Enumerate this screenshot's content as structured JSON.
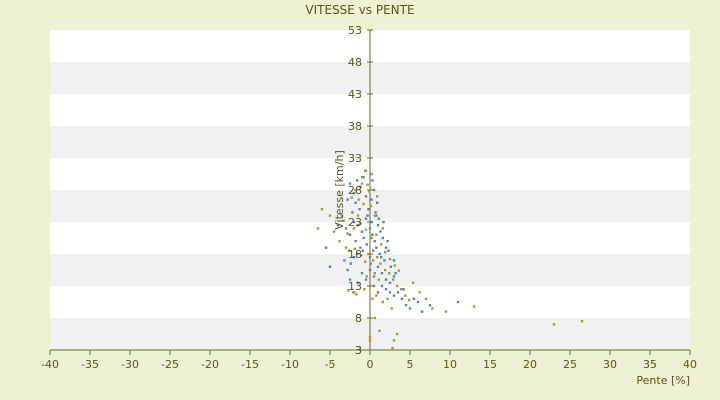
{
  "chart_data": {
    "type": "scatter",
    "title": "VITESSE vs PENTE",
    "xlabel": "Pente [%]",
    "ylabel": "Vitesse [km/h]",
    "xlim": [
      -40,
      40
    ],
    "ylim": [
      3,
      53
    ],
    "x_ticks": [
      "-40",
      "-35",
      "-30",
      "-25",
      "-20",
      "-15",
      "-10",
      "-5",
      "0",
      "5",
      "10",
      "15",
      "20",
      "25",
      "30",
      "35",
      "40"
    ],
    "y_ticks": [
      "53",
      "48",
      "43",
      "38",
      "33",
      "28",
      "23",
      "18",
      "13",
      "8",
      "3"
    ],
    "y_tick_bottom": "3",
    "grid": "horizontal alternating bands",
    "colors": {
      "background": "#eff2d2",
      "band_light": "#ffffff",
      "band_dark": "#f1f1f1",
      "axis": "#6b6b2a",
      "text": "#55551c",
      "point_a": "#4a86c8",
      "point_b": "#a89a2a"
    },
    "series": [
      {
        "color": "#4a86c8",
        "points": [
          [
            -2.5,
            29
          ],
          [
            -2.0,
            27.5
          ],
          [
            -1.8,
            26
          ],
          [
            -1.2,
            28.5
          ],
          [
            -0.8,
            30
          ],
          [
            -0.5,
            27
          ],
          [
            -0.2,
            25
          ],
          [
            0.2,
            26.5
          ],
          [
            0.5,
            28
          ],
          [
            0.8,
            24
          ],
          [
            -3.0,
            22
          ],
          [
            -2.5,
            21
          ],
          [
            -2.0,
            23
          ],
          [
            -1.5,
            22.5
          ],
          [
            -1.0,
            21.5
          ],
          [
            -0.5,
            23.5
          ],
          [
            0,
            22
          ],
          [
            0.3,
            21
          ],
          [
            0.6,
            20
          ],
          [
            1.0,
            22.5
          ],
          [
            1.3,
            21.5
          ],
          [
            1.6,
            20.5
          ],
          [
            2.0,
            19
          ],
          [
            2.3,
            18.5
          ],
          [
            1.8,
            17
          ],
          [
            1.2,
            18
          ],
          [
            0.8,
            19
          ],
          [
            0.4,
            18.5
          ],
          [
            0,
            17.5
          ],
          [
            -0.4,
            19.5
          ],
          [
            -0.8,
            20.5
          ],
          [
            -1.2,
            19
          ],
          [
            -1.6,
            18
          ],
          [
            -2.0,
            17.5
          ],
          [
            -2.4,
            16.5
          ],
          [
            -2.8,
            15.5
          ],
          [
            -3.2,
            17
          ],
          [
            -5.0,
            16
          ],
          [
            -5.5,
            19
          ],
          [
            -1.0,
            15
          ],
          [
            -0.5,
            14
          ],
          [
            0,
            15.5
          ],
          [
            0.5,
            14.5
          ],
          [
            1.0,
            16
          ],
          [
            1.5,
            15
          ],
          [
            2.0,
            14
          ],
          [
            2.5,
            13.5
          ],
          [
            3.0,
            14.5
          ],
          [
            3.5,
            12
          ],
          [
            4.0,
            11
          ],
          [
            4.5,
            10
          ],
          [
            5.0,
            9.5
          ],
          [
            5.5,
            11
          ],
          [
            6.0,
            10.5
          ],
          [
            6.5,
            9
          ],
          [
            3.0,
            11.5
          ],
          [
            2.5,
            12
          ],
          [
            2.0,
            12.5
          ],
          [
            1.5,
            13
          ],
          [
            1.0,
            12
          ],
          [
            0.5,
            13
          ],
          [
            -1.5,
            13.5
          ],
          [
            -2.0,
            12
          ],
          [
            -2.5,
            14
          ],
          [
            0.2,
            23
          ],
          [
            0.7,
            24.5
          ],
          [
            1.1,
            23.5
          ],
          [
            -0.3,
            24
          ],
          [
            -1.3,
            25
          ],
          [
            -2.2,
            24.5
          ],
          [
            -1.8,
            20
          ],
          [
            -0.9,
            18.5
          ],
          [
            0.1,
            16.5
          ],
          [
            1.4,
            17.5
          ],
          [
            2.6,
            16
          ],
          [
            3.2,
            15
          ],
          [
            4.2,
            12.5
          ],
          [
            7.5,
            10
          ],
          [
            11,
            10.5
          ],
          [
            -0.6,
            31
          ],
          [
            0.3,
            29.5
          ],
          [
            -1.6,
            29.5
          ],
          [
            -2.8,
            26.5
          ],
          [
            -3.5,
            24
          ],
          [
            -4.0,
            22.5
          ],
          [
            0.9,
            26
          ],
          [
            1.7,
            23
          ],
          [
            2.2,
            20
          ],
          [
            3.0,
            17
          ]
        ]
      },
      {
        "color": "#a89a2a",
        "points": [
          [
            -0.5,
            31
          ],
          [
            -1.0,
            30
          ],
          [
            0.2,
            30.5
          ],
          [
            -1.8,
            28
          ],
          [
            -0.3,
            28.8
          ],
          [
            0.9,
            27
          ],
          [
            -2.3,
            26.8
          ],
          [
            -1.4,
            26.5
          ],
          [
            0.1,
            25.5
          ],
          [
            -6.5,
            22
          ],
          [
            -6.0,
            25
          ],
          [
            -5.0,
            24
          ],
          [
            -4.5,
            21.5
          ],
          [
            -3.8,
            20
          ],
          [
            -3.0,
            19
          ],
          [
            -2.6,
            18.5
          ],
          [
            -1.9,
            18.8
          ],
          [
            -1.1,
            17.8
          ],
          [
            -0.6,
            16.8
          ],
          [
            -0.2,
            18
          ],
          [
            0.4,
            17
          ],
          [
            0.9,
            17.5
          ],
          [
            1.3,
            16.5
          ],
          [
            1.9,
            15.5
          ],
          [
            2.4,
            15
          ],
          [
            2.9,
            14
          ],
          [
            3.4,
            13
          ],
          [
            3.9,
            12.5
          ],
          [
            4.4,
            11.5
          ],
          [
            4.9,
            10.8
          ],
          [
            5.4,
            13.5
          ],
          [
            6.2,
            12
          ],
          [
            7.0,
            11
          ],
          [
            7.8,
            9.5
          ],
          [
            9.5,
            9
          ],
          [
            13,
            9.8
          ],
          [
            23,
            7
          ],
          [
            26.5,
            7.5
          ],
          [
            -2.1,
            12
          ],
          [
            -2.7,
            12.3
          ],
          [
            -1.7,
            11.7
          ],
          [
            -0.7,
            12.5
          ],
          [
            0.3,
            11
          ],
          [
            0.8,
            11.5
          ],
          [
            1.6,
            10.5
          ],
          [
            2.2,
            11
          ],
          [
            2.7,
            9.5
          ],
          [
            3.0,
            4.5
          ],
          [
            3.4,
            5.5
          ],
          [
            2.8,
            3.3
          ],
          [
            1.2,
            6
          ],
          [
            0.6,
            8
          ],
          [
            0,
            5
          ],
          [
            0,
            4.5
          ],
          [
            -0.4,
            14.5
          ],
          [
            0.6,
            15
          ],
          [
            1.1,
            14
          ],
          [
            -1.2,
            22.8
          ],
          [
            -0.5,
            21.8
          ],
          [
            0.2,
            20.5
          ],
          [
            0.8,
            21
          ],
          [
            -2.0,
            22
          ],
          [
            -2.8,
            21.2
          ],
          [
            -3.3,
            23.2
          ],
          [
            1.4,
            19.5
          ],
          [
            1.9,
            18.3
          ],
          [
            2.5,
            17.2
          ],
          [
            3.1,
            16.2
          ],
          [
            3.6,
            15.4
          ],
          [
            -1.5,
            24
          ],
          [
            -0.8,
            25.8
          ],
          [
            0.6,
            24
          ],
          [
            1.6,
            22
          ],
          [
            -0.1,
            27.8
          ],
          [
            -1.0,
            29
          ]
        ]
      }
    ]
  }
}
